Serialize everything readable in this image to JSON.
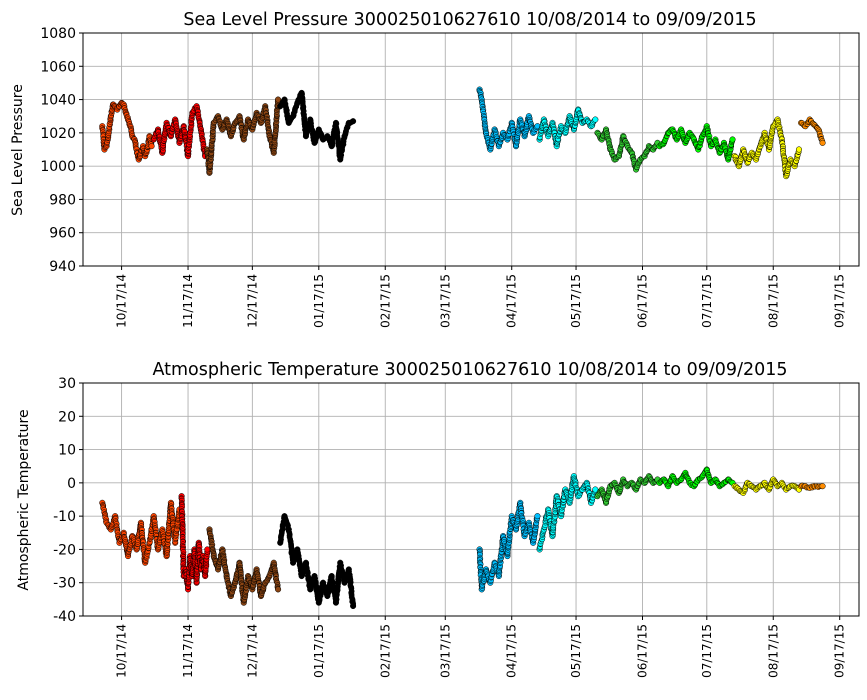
{
  "chart_data": [
    {
      "type": "scatter",
      "title": "Sea Level Pressure 300025010627610  10/08/2014 to 09/09/2015",
      "xlabel": "",
      "ylabel": "Sea Level Pressure",
      "ylim": [
        940,
        1080
      ],
      "yticks": [
        940,
        960,
        980,
        1000,
        1020,
        1040,
        1060,
        1080
      ],
      "xlim": [
        "2014-09-29",
        "2015-09-26"
      ],
      "xticks": [
        {
          "date": "2014-10-17",
          "label": "10/17/14"
        },
        {
          "date": "2014-11-17",
          "label": "11/17/14"
        },
        {
          "date": "2014-12-17",
          "label": "12/17/14"
        },
        {
          "date": "2015-01-17",
          "label": "01/17/15"
        },
        {
          "date": "2015-02-17",
          "label": "02/17/15"
        },
        {
          "date": "2015-03-17",
          "label": "03/17/15"
        },
        {
          "date": "2015-04-17",
          "label": "04/17/15"
        },
        {
          "date": "2015-05-17",
          "label": "05/17/15"
        },
        {
          "date": "2015-06-17",
          "label": "06/17/15"
        },
        {
          "date": "2015-07-17",
          "label": "07/17/15"
        },
        {
          "date": "2015-08-17",
          "label": "08/17/15"
        },
        {
          "date": "2015-09-17",
          "label": "09/17/15"
        }
      ],
      "grid": true,
      "series": [
        {
          "color": "#ff4500",
          "x": [
            "2014-10-08",
            "2014-10-09",
            "2014-10-10",
            "2014-10-11",
            "2014-10-12",
            "2014-10-13",
            "2014-10-14",
            "2014-10-15",
            "2014-10-16",
            "2014-10-17",
            "2014-10-18",
            "2014-10-19",
            "2014-10-20",
            "2014-10-21",
            "2014-10-22",
            "2014-10-23",
            "2014-10-24",
            "2014-10-25",
            "2014-10-26",
            "2014-10-27",
            "2014-10-28",
            "2014-10-29",
            "2014-10-30",
            "2014-10-31"
          ],
          "y": [
            1024,
            1010,
            1012,
            1020,
            1030,
            1037,
            1036,
            1034,
            1036,
            1038,
            1037,
            1032,
            1028,
            1024,
            1018,
            1016,
            1010,
            1004,
            1008,
            1012,
            1006,
            1010,
            1018,
            1012
          ]
        },
        {
          "color": "#ff0000",
          "x": [
            "2014-11-01",
            "2014-11-03",
            "2014-11-05",
            "2014-11-07",
            "2014-11-09",
            "2014-11-11",
            "2014-11-13",
            "2014-11-15",
            "2014-11-17",
            "2014-11-19",
            "2014-11-21",
            "2014-11-23",
            "2014-11-25"
          ],
          "y": [
            1016,
            1022,
            1008,
            1026,
            1018,
            1028,
            1014,
            1024,
            1006,
            1032,
            1036,
            1022,
            1006
          ]
        },
        {
          "color": "#8b4513",
          "x": [
            "2014-11-26",
            "2014-11-27",
            "2014-11-29",
            "2014-12-01",
            "2014-12-03",
            "2014-12-05",
            "2014-12-07",
            "2014-12-09",
            "2014-12-11",
            "2014-12-13",
            "2014-12-15",
            "2014-12-17",
            "2014-12-19",
            "2014-12-21",
            "2014-12-23",
            "2014-12-25",
            "2014-12-27",
            "2014-12-29"
          ],
          "y": [
            1010,
            996,
            1026,
            1030,
            1022,
            1028,
            1018,
            1026,
            1030,
            1016,
            1028,
            1022,
            1032,
            1026,
            1036,
            1018,
            1008,
            1040
          ]
        },
        {
          "color": "#000000",
          "x": [
            "2014-12-30",
            "2015-01-01",
            "2015-01-03",
            "2015-01-05",
            "2015-01-07",
            "2015-01-09",
            "2015-01-11",
            "2015-01-13",
            "2015-01-15",
            "2015-01-17",
            "2015-01-19",
            "2015-01-21",
            "2015-01-23",
            "2015-01-25",
            "2015-01-27",
            "2015-01-29",
            "2015-01-31",
            "2015-02-02"
          ],
          "y": [
            1036,
            1040,
            1026,
            1030,
            1038,
            1044,
            1018,
            1028,
            1014,
            1022,
            1016,
            1018,
            1012,
            1026,
            1004,
            1018,
            1026,
            1027
          ]
        },
        {
          "color": "#00bfff",
          "x": [
            "2015-04-02",
            "2015-04-03",
            "2015-04-05",
            "2015-04-07",
            "2015-04-09",
            "2015-04-11",
            "2015-04-13",
            "2015-04-15",
            "2015-04-17",
            "2015-04-19",
            "2015-04-21",
            "2015-04-23",
            "2015-04-25",
            "2015-04-27",
            "2015-04-29"
          ],
          "y": [
            1046,
            1040,
            1020,
            1010,
            1022,
            1012,
            1020,
            1016,
            1026,
            1012,
            1028,
            1018,
            1030,
            1020,
            1024
          ]
        },
        {
          "color": "#00ffff",
          "x": [
            "2015-04-30",
            "2015-05-02",
            "2015-05-04",
            "2015-05-06",
            "2015-05-08",
            "2015-05-10",
            "2015-05-12",
            "2015-05-14",
            "2015-05-16",
            "2015-05-18",
            "2015-05-20",
            "2015-05-22",
            "2015-05-24",
            "2015-05-26"
          ],
          "y": [
            1016,
            1028,
            1018,
            1026,
            1012,
            1024,
            1020,
            1030,
            1022,
            1034,
            1026,
            1028,
            1024,
            1028
          ]
        },
        {
          "color": "#32cd32",
          "x": [
            "2015-05-27",
            "2015-05-29",
            "2015-05-31",
            "2015-06-02",
            "2015-06-04",
            "2015-06-06",
            "2015-06-08",
            "2015-06-10",
            "2015-06-12",
            "2015-06-14",
            "2015-06-16",
            "2015-06-18",
            "2015-06-20",
            "2015-06-22",
            "2015-06-24"
          ],
          "y": [
            1020,
            1016,
            1022,
            1010,
            1004,
            1006,
            1018,
            1012,
            1008,
            998,
            1004,
            1006,
            1012,
            1010,
            1014
          ]
        },
        {
          "color": "#00ff00",
          "x": [
            "2015-06-25",
            "2015-06-27",
            "2015-06-29",
            "2015-07-01",
            "2015-07-03",
            "2015-07-05",
            "2015-07-07",
            "2015-07-09",
            "2015-07-11",
            "2015-07-13",
            "2015-07-15",
            "2015-07-17",
            "2015-07-19",
            "2015-07-21",
            "2015-07-23",
            "2015-07-25",
            "2015-07-27",
            "2015-07-29"
          ],
          "y": [
            1012,
            1014,
            1020,
            1022,
            1016,
            1022,
            1014,
            1020,
            1016,
            1010,
            1018,
            1024,
            1012,
            1016,
            1008,
            1014,
            1004,
            1016
          ]
        },
        {
          "color": "#ffff00",
          "x": [
            "2015-07-30",
            "2015-08-01",
            "2015-08-03",
            "2015-08-05",
            "2015-08-07",
            "2015-08-09",
            "2015-08-11",
            "2015-08-13",
            "2015-08-15",
            "2015-08-17",
            "2015-08-19",
            "2015-08-21",
            "2015-08-23",
            "2015-08-25",
            "2015-08-27",
            "2015-08-29"
          ],
          "y": [
            1006,
            1000,
            1010,
            1002,
            1008,
            1004,
            1012,
            1020,
            1010,
            1024,
            1028,
            1016,
            994,
            1004,
            1000,
            1010
          ]
        },
        {
          "color": "#ff8c00",
          "x": [
            "2015-08-30",
            "2015-09-01",
            "2015-09-03",
            "2015-09-05",
            "2015-09-07",
            "2015-09-09"
          ],
          "y": [
            1026,
            1024,
            1028,
            1025,
            1022,
            1014
          ]
        }
      ]
    },
    {
      "type": "scatter",
      "title": "Atmospheric Temperature 300025010627610  10/08/2014 to 09/09/2015",
      "xlabel": "",
      "ylabel": "Atmospheric Temperature",
      "ylim": [
        -40,
        30
      ],
      "yticks": [
        -40,
        -30,
        -20,
        -10,
        0,
        10,
        20,
        30
      ],
      "xlim": [
        "2014-09-29",
        "2015-09-26"
      ],
      "xticks": [
        {
          "date": "2014-10-17",
          "label": "10/17/14"
        },
        {
          "date": "2014-11-17",
          "label": "11/17/14"
        },
        {
          "date": "2014-12-17",
          "label": "12/17/14"
        },
        {
          "date": "2015-01-17",
          "label": "01/17/15"
        },
        {
          "date": "2015-02-17",
          "label": "02/17/15"
        },
        {
          "date": "2015-03-17",
          "label": "03/17/15"
        },
        {
          "date": "2015-04-17",
          "label": "04/17/15"
        },
        {
          "date": "2015-05-17",
          "label": "05/17/15"
        },
        {
          "date": "2015-06-17",
          "label": "06/17/15"
        },
        {
          "date": "2015-07-17",
          "label": "07/17/15"
        },
        {
          "date": "2015-08-17",
          "label": "08/17/15"
        },
        {
          "date": "2015-09-17",
          "label": "09/17/15"
        }
      ],
      "grid": true,
      "series": [
        {
          "color": "#ff4500",
          "x": [
            "2014-10-08",
            "2014-10-10",
            "2014-10-12",
            "2014-10-14",
            "2014-10-16",
            "2014-10-18",
            "2014-10-20",
            "2014-10-22",
            "2014-10-24",
            "2014-10-26",
            "2014-10-28",
            "2014-10-30",
            "2014-11-01",
            "2014-11-03",
            "2014-11-05",
            "2014-11-07",
            "2014-11-09",
            "2014-11-11",
            "2014-11-13"
          ],
          "y": [
            -6,
            -12,
            -14,
            -10,
            -18,
            -15,
            -22,
            -16,
            -20,
            -12,
            -24,
            -18,
            -10,
            -20,
            -14,
            -22,
            -6,
            -18,
            -8
          ]
        },
        {
          "color": "#ff0000",
          "x": [
            "2014-11-14",
            "2014-11-15",
            "2014-11-16",
            "2014-11-17",
            "2014-11-18",
            "2014-11-19",
            "2014-11-20",
            "2014-11-21",
            "2014-11-22",
            "2014-11-23",
            "2014-11-24",
            "2014-11-25",
            "2014-11-26"
          ],
          "y": [
            -4,
            -28,
            -26,
            -32,
            -22,
            -28,
            -20,
            -30,
            -18,
            -26,
            -22,
            -28,
            -20
          ]
        },
        {
          "color": "#8b4513",
          "x": [
            "2014-11-27",
            "2014-11-29",
            "2014-12-01",
            "2014-12-03",
            "2014-12-05",
            "2014-12-07",
            "2014-12-09",
            "2014-12-11",
            "2014-12-13",
            "2014-12-15",
            "2014-12-17",
            "2014-12-19",
            "2014-12-21",
            "2014-12-23",
            "2014-12-25",
            "2014-12-27",
            "2014-12-29"
          ],
          "y": [
            -14,
            -22,
            -26,
            -20,
            -28,
            -34,
            -30,
            -24,
            -36,
            -28,
            -32,
            -26,
            -34,
            -30,
            -28,
            -24,
            -32
          ]
        },
        {
          "color": "#000000",
          "x": [
            "2014-12-30",
            "2015-01-01",
            "2015-01-03",
            "2015-01-05",
            "2015-01-07",
            "2015-01-09",
            "2015-01-11",
            "2015-01-13",
            "2015-01-15",
            "2015-01-17",
            "2015-01-19",
            "2015-01-21",
            "2015-01-23",
            "2015-01-25",
            "2015-01-27",
            "2015-01-29",
            "2015-01-31",
            "2015-02-02"
          ],
          "y": [
            -18,
            -10,
            -14,
            -24,
            -20,
            -28,
            -24,
            -32,
            -28,
            -36,
            -30,
            -34,
            -28,
            -36,
            -24,
            -30,
            -26,
            -37
          ]
        },
        {
          "color": "#00bfff",
          "x": [
            "2015-04-02",
            "2015-04-03",
            "2015-04-05",
            "2015-04-07",
            "2015-04-09",
            "2015-04-11",
            "2015-04-13",
            "2015-04-15",
            "2015-04-17",
            "2015-04-19",
            "2015-04-21",
            "2015-04-23",
            "2015-04-25",
            "2015-04-27",
            "2015-04-29"
          ],
          "y": [
            -20,
            -32,
            -26,
            -30,
            -24,
            -28,
            -16,
            -22,
            -10,
            -14,
            -6,
            -16,
            -12,
            -18,
            -10
          ]
        },
        {
          "color": "#00ffff",
          "x": [
            "2015-04-30",
            "2015-05-02",
            "2015-05-04",
            "2015-05-06",
            "2015-05-08",
            "2015-05-10",
            "2015-05-12",
            "2015-05-14",
            "2015-05-16",
            "2015-05-18",
            "2015-05-20",
            "2015-05-22",
            "2015-05-24",
            "2015-05-26"
          ],
          "y": [
            -20,
            -14,
            -8,
            -16,
            -4,
            -10,
            -2,
            -6,
            2,
            -4,
            -2,
            0,
            -6,
            -2
          ]
        },
        {
          "color": "#32cd32",
          "x": [
            "2015-05-27",
            "2015-05-29",
            "2015-05-31",
            "2015-06-02",
            "2015-06-04",
            "2015-06-06",
            "2015-06-08",
            "2015-06-10",
            "2015-06-12",
            "2015-06-14",
            "2015-06-16",
            "2015-06-18",
            "2015-06-20",
            "2015-06-22",
            "2015-06-24"
          ],
          "y": [
            -4,
            -2,
            -6,
            -1,
            0,
            -3,
            1,
            -1,
            0,
            -2,
            1,
            0,
            2,
            0,
            1
          ]
        },
        {
          "color": "#00ff00",
          "x": [
            "2015-06-25",
            "2015-06-27",
            "2015-06-29",
            "2015-07-01",
            "2015-07-03",
            "2015-07-05",
            "2015-07-07",
            "2015-07-09",
            "2015-07-11",
            "2015-07-13",
            "2015-07-15",
            "2015-07-17",
            "2015-07-19",
            "2015-07-21",
            "2015-07-23",
            "2015-07-25",
            "2015-07-27",
            "2015-07-29"
          ],
          "y": [
            0,
            1,
            -1,
            2,
            0,
            1,
            3,
            0,
            -1,
            1,
            2,
            4,
            0,
            1,
            -1,
            0,
            1,
            0
          ]
        },
        {
          "color": "#ffff00",
          "x": [
            "2015-07-30",
            "2015-08-01",
            "2015-08-03",
            "2015-08-05",
            "2015-08-07",
            "2015-08-09",
            "2015-08-11",
            "2015-08-13",
            "2015-08-15",
            "2015-08-17",
            "2015-08-19",
            "2015-08-21",
            "2015-08-23",
            "2015-08-25",
            "2015-08-27",
            "2015-08-29"
          ],
          "y": [
            -1,
            -2,
            -3,
            0,
            -1,
            -2,
            -1,
            0,
            -2,
            1,
            -1,
            0,
            -2,
            -1,
            -1,
            -2
          ]
        },
        {
          "color": "#ff8c00",
          "x": [
            "2015-08-30",
            "2015-09-01",
            "2015-09-03",
            "2015-09-05",
            "2015-09-07",
            "2015-09-09"
          ],
          "y": [
            -1,
            -1,
            -1.5,
            -1,
            -1.2,
            -1
          ]
        }
      ]
    }
  ]
}
